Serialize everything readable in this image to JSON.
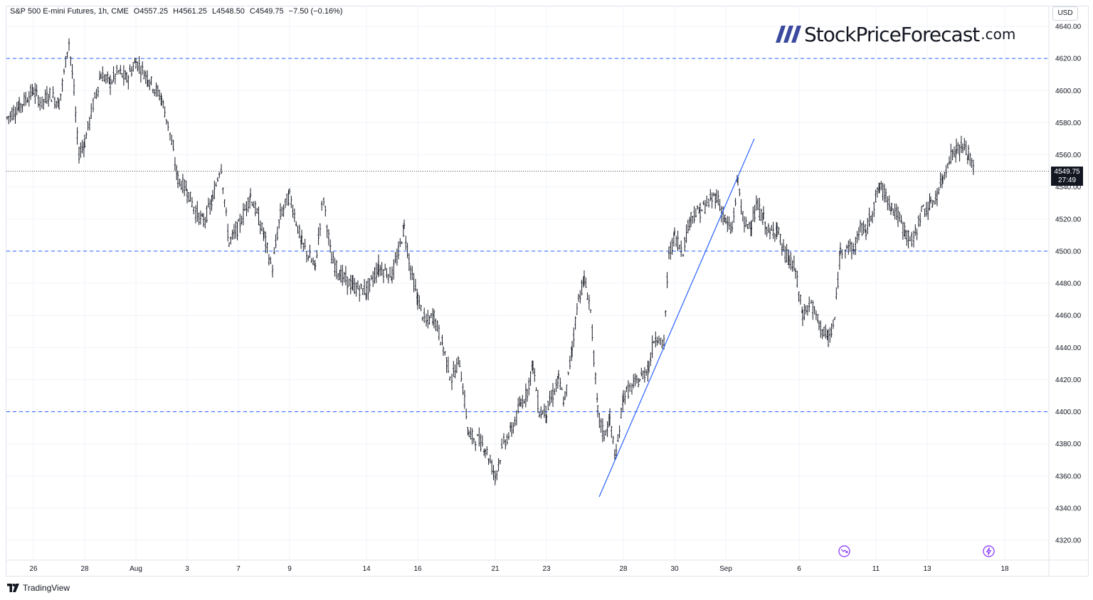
{
  "header": {
    "symbol": "S&P 500 E-mini Futures, 1h, CME",
    "open": "O4557.25",
    "high": "H4561.25",
    "low": "L4548.50",
    "close": "C4549.75",
    "change": "−7.50 (−0.16%)"
  },
  "currency": "USD",
  "logo": {
    "main": "StockPriceForecast",
    "tld": ".com"
  },
  "price_tag": {
    "price": "4549.75",
    "countdown": "27:49"
  },
  "footer": {
    "brand": "TradingView"
  },
  "icons": {
    "event1": "forward-arrow-event-icon",
    "event2": "lightning-event-icon"
  },
  "colors": {
    "candle": "#131722",
    "level_line": "#2962ff",
    "trend_line": "#2962ff",
    "grid": "#f0f3fa",
    "price_tag_bg": "#131722"
  },
  "chart_data": {
    "type": "ohlc",
    "title": "",
    "ylabel": "",
    "ylim": [
      4310,
      4645
    ],
    "grid": true,
    "y_ticks": [
      "4640.00",
      "4620.00",
      "4600.00",
      "4580.00",
      "4560.00",
      "4540.00",
      "4520.00",
      "4500.00",
      "4480.00",
      "4460.00",
      "4440.00",
      "4420.00",
      "4400.00",
      "4380.00",
      "4360.00",
      "4340.00",
      "4320.00"
    ],
    "x_ticks": [
      {
        "label": "26",
        "index": 0
      },
      {
        "label": "28",
        "index": 1
      },
      {
        "label": "Aug",
        "index": 2
      },
      {
        "label": "3",
        "index": 3
      },
      {
        "label": "7",
        "index": 4
      },
      {
        "label": "9",
        "index": 5
      },
      {
        "label": "14",
        "index": 6
      },
      {
        "label": "16",
        "index": 7
      },
      {
        "label": "21",
        "index": 8
      },
      {
        "label": "23",
        "index": 9
      },
      {
        "label": "28",
        "index": 10
      },
      {
        "label": "30",
        "index": 11
      },
      {
        "label": "Sep",
        "index": 12
      },
      {
        "label": "6",
        "index": 13
      },
      {
        "label": "11",
        "index": 14
      },
      {
        "label": "13",
        "index": 15
      },
      {
        "label": "18",
        "index": 16
      }
    ],
    "horizontal_levels": [
      4620,
      4500,
      4400
    ],
    "last_price": 4549.75,
    "trend_line": {
      "from": {
        "date": "2023-08-25",
        "price": 4347
      },
      "to": {
        "date": "2023-09-04",
        "price": 4570
      }
    },
    "price_path": [
      {
        "t": "Jul 25",
        "price": 4583
      },
      {
        "t": "Jul 25",
        "price": 4590
      },
      {
        "t": "Jul 26",
        "price": 4600
      },
      {
        "t": "Jul 26",
        "price": 4592
      },
      {
        "t": "Jul 26",
        "price": 4598
      },
      {
        "t": "Jul 27",
        "price": 4592
      },
      {
        "t": "Jul 27",
        "price": 4610
      },
      {
        "t": "Jul 27",
        "price": 4632
      },
      {
        "t": "Jul 27",
        "price": 4603
      },
      {
        "t": "Jul 27",
        "price": 4560
      },
      {
        "t": "Jul 28",
        "price": 4568
      },
      {
        "t": "Jul 28",
        "price": 4590
      },
      {
        "t": "Jul 28",
        "price": 4610
      },
      {
        "t": "Jul 31",
        "price": 4605
      },
      {
        "t": "Jul 31",
        "price": 4612
      },
      {
        "t": "Jul 31",
        "price": 4607
      },
      {
        "t": "Aug 1",
        "price": 4618
      },
      {
        "t": "Aug 1",
        "price": 4608
      },
      {
        "t": "Aug 2",
        "price": 4595
      },
      {
        "t": "Aug 2",
        "price": 4575
      },
      {
        "t": "Aug 2",
        "price": 4545
      },
      {
        "t": "Aug 3",
        "price": 4538
      },
      {
        "t": "Aug 3",
        "price": 4525
      },
      {
        "t": "Aug 3",
        "price": 4518
      },
      {
        "t": "Aug 4",
        "price": 4532
      },
      {
        "t": "Aug 4",
        "price": 4555
      },
      {
        "t": "Aug 4",
        "price": 4505
      },
      {
        "t": "Aug 7",
        "price": 4515
      },
      {
        "t": "Aug 7",
        "price": 4535
      },
      {
        "t": "Aug 8",
        "price": 4510
      },
      {
        "t": "Aug 8",
        "price": 4488
      },
      {
        "t": "Aug 8",
        "price": 4522
      },
      {
        "t": "Aug 9",
        "price": 4535
      },
      {
        "t": "Aug 9",
        "price": 4505
      },
      {
        "t": "Aug 10",
        "price": 4490
      },
      {
        "t": "Aug 10",
        "price": 4535
      },
      {
        "t": "Aug 10",
        "price": 4495
      },
      {
        "t": "Aug 11",
        "price": 4485
      },
      {
        "t": "Aug 11",
        "price": 4478
      },
      {
        "t": "Aug 14",
        "price": 4475
      },
      {
        "t": "Aug 14",
        "price": 4490
      },
      {
        "t": "Aug 15",
        "price": 4485
      },
      {
        "t": "Aug 15",
        "price": 4498
      },
      {
        "t": "Aug 15",
        "price": 4515
      },
      {
        "t": "Aug 15",
        "price": 4490
      },
      {
        "t": "Aug 16",
        "price": 4470
      },
      {
        "t": "Aug 16",
        "price": 4455
      },
      {
        "t": "Aug 16",
        "price": 4460
      },
      {
        "t": "Aug 17",
        "price": 4440
      },
      {
        "t": "Aug 17",
        "price": 4420
      },
      {
        "t": "Aug 17",
        "price": 4432
      },
      {
        "t": "Aug 18",
        "price": 4385
      },
      {
        "t": "Aug 18",
        "price": 4383
      },
      {
        "t": "Aug 18",
        "price": 4378
      },
      {
        "t": "Aug 21",
        "price": 4360
      },
      {
        "t": "Aug 21",
        "price": 4380
      },
      {
        "t": "Aug 21",
        "price": 4388
      },
      {
        "t": "Aug 22",
        "price": 4405
      },
      {
        "t": "Aug 22",
        "price": 4412
      },
      {
        "t": "Aug 22",
        "price": 4430
      },
      {
        "t": "Aug 22",
        "price": 4400
      },
      {
        "t": "Aug 23",
        "price": 4400
      },
      {
        "t": "Aug 23",
        "price": 4410
      },
      {
        "t": "Aug 23",
        "price": 4420
      },
      {
        "t": "Aug 23",
        "price": 4405
      },
      {
        "t": "Aug 24",
        "price": 4440
      },
      {
        "t": "Aug 24",
        "price": 4470
      },
      {
        "t": "Aug 24",
        "price": 4482
      },
      {
        "t": "Aug 24",
        "price": 4466
      },
      {
        "t": "Aug 25",
        "price": 4400
      },
      {
        "t": "Aug 25",
        "price": 4385
      },
      {
        "t": "Aug 25",
        "price": 4395
      },
      {
        "t": "Aug 25",
        "price": 4370
      },
      {
        "t": "Aug 28",
        "price": 4410
      },
      {
        "t": "Aug 28",
        "price": 4415
      },
      {
        "t": "Aug 28",
        "price": 4420
      },
      {
        "t": "Aug 29",
        "price": 4428
      },
      {
        "t": "Aug 29",
        "price": 4445
      },
      {
        "t": "Aug 29",
        "price": 4448
      },
      {
        "t": "Aug 29",
        "price": 4438
      },
      {
        "t": "Aug 29",
        "price": 4495
      },
      {
        "t": "Aug 30",
        "price": 4510
      },
      {
        "t": "Aug 30",
        "price": 4500
      },
      {
        "t": "Aug 30",
        "price": 4522
      },
      {
        "t": "Aug 31",
        "price": 4525
      },
      {
        "t": "Aug 31",
        "price": 4530
      },
      {
        "t": "Aug 31",
        "price": 4535
      },
      {
        "t": "Sep 1",
        "price": 4518
      },
      {
        "t": "Sep 1",
        "price": 4512
      },
      {
        "t": "Sep 1",
        "price": 4545
      },
      {
        "t": "Sep 1",
        "price": 4515
      },
      {
        "t": "Sep 5",
        "price": 4518
      },
      {
        "t": "Sep 5",
        "price": 4528
      },
      {
        "t": "Sep 5",
        "price": 4520
      },
      {
        "t": "Sep 5",
        "price": 4510
      },
      {
        "t": "Sep 6",
        "price": 4515
      },
      {
        "t": "Sep 6",
        "price": 4500
      },
      {
        "t": "Sep 6",
        "price": 4495
      },
      {
        "t": "Sep 6",
        "price": 4488
      },
      {
        "t": "Sep 7",
        "price": 4460
      },
      {
        "t": "Sep 7",
        "price": 4468
      },
      {
        "t": "Sep 7",
        "price": 4455
      },
      {
        "t": "Sep 8",
        "price": 4445
      },
      {
        "t": "Sep 8",
        "price": 4455
      },
      {
        "t": "Sep 8",
        "price": 4500
      },
      {
        "t": "Sep 8",
        "price": 4505
      },
      {
        "t": "Sep 11",
        "price": 4500
      },
      {
        "t": "Sep 11",
        "price": 4515
      },
      {
        "t": "Sep 11",
        "price": 4512
      },
      {
        "t": "Sep 11",
        "price": 4525
      },
      {
        "t": "Sep 12",
        "price": 4540
      },
      {
        "t": "Sep 12",
        "price": 4535
      },
      {
        "t": "Sep 12",
        "price": 4528
      },
      {
        "t": "Sep 12",
        "price": 4522
      },
      {
        "t": "Sep 13",
        "price": 4512
      },
      {
        "t": "Sep 13",
        "price": 4505
      },
      {
        "t": "Sep 13",
        "price": 4525
      },
      {
        "t": "Sep 14",
        "price": 4528
      },
      {
        "t": "Sep 14",
        "price": 4535
      },
      {
        "t": "Sep 14",
        "price": 4545
      },
      {
        "t": "Sep 14",
        "price": 4558
      },
      {
        "t": "Sep 15",
        "price": 4563
      },
      {
        "t": "Sep 15",
        "price": 4565
      },
      {
        "t": "Sep 15",
        "price": 4560
      },
      {
        "t": "Sep 15",
        "price": 4550
      }
    ]
  }
}
